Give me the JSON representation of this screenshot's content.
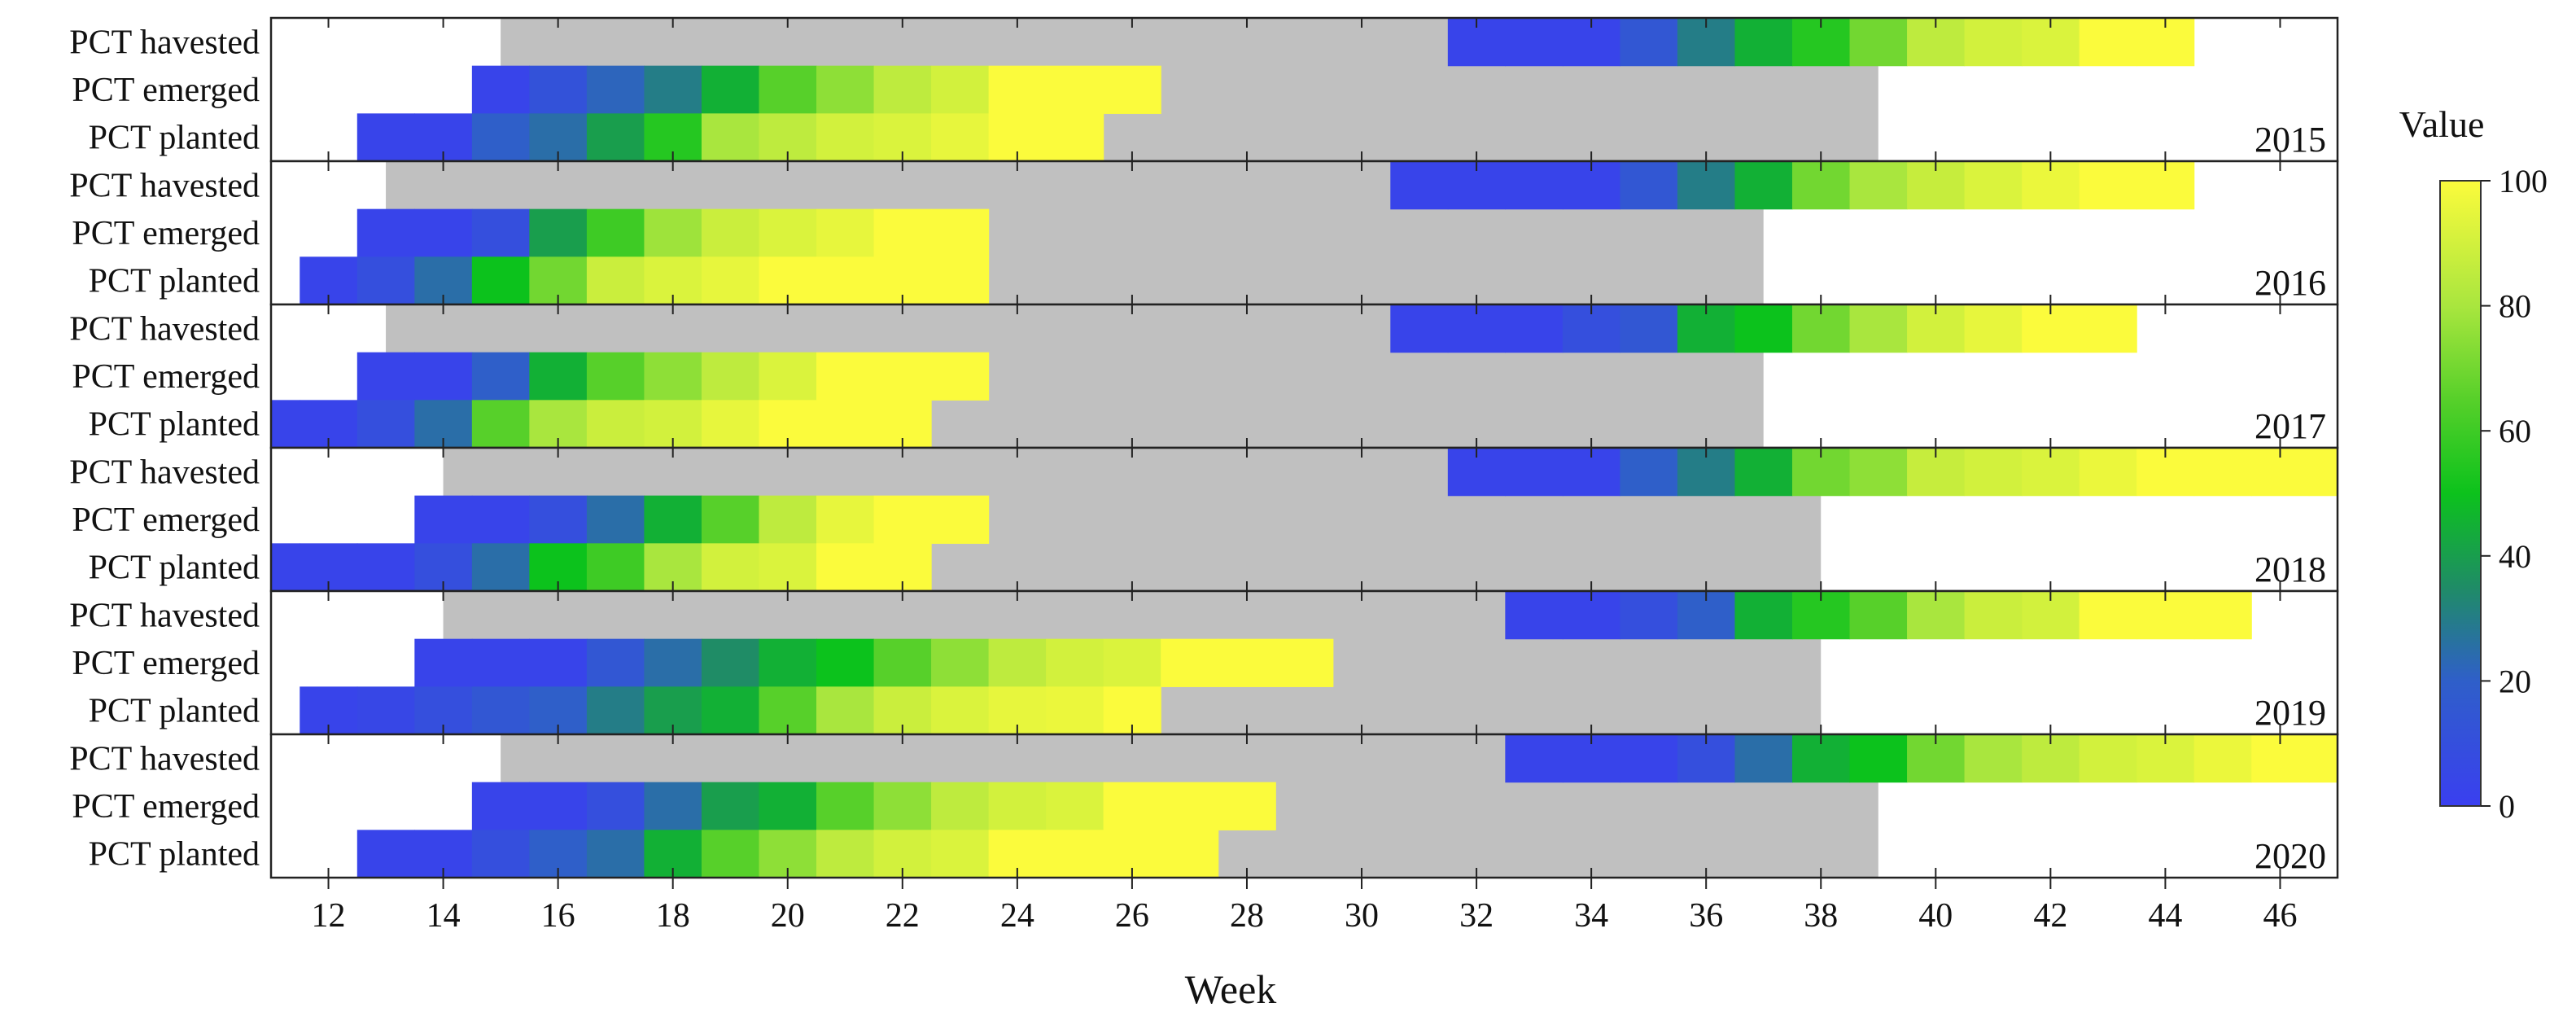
{
  "chart_data": {
    "type": "heatmap",
    "xlabel": "Week",
    "xlim": [
      11,
      47
    ],
    "xticks": [
      12,
      14,
      16,
      18,
      20,
      22,
      24,
      26,
      28,
      30,
      32,
      34,
      36,
      38,
      40,
      42,
      44,
      46
    ],
    "row_labels": [
      "PCT havested",
      "PCT emerged",
      "PCT planted"
    ],
    "colorbar": {
      "title": "Value",
      "min": 0,
      "max": 100,
      "ticks": [
        0,
        20,
        40,
        60,
        80,
        100
      ]
    },
    "colors": {
      "nodata": "#ffffff",
      "season": "#c0c0c0"
    },
    "panels": [
      {
        "year": "2015",
        "season": [
          15,
          39
        ],
        "havested": {
          "start": 32,
          "values": [
            3,
            3,
            3,
            15,
            30,
            45,
            55,
            70,
            85,
            90,
            92,
            100,
            100
          ]
        },
        "emerged": {
          "start": 15,
          "values": [
            3,
            12,
            22,
            30,
            45,
            65,
            75,
            85,
            90,
            100,
            100,
            100
          ]
        },
        "planted": {
          "start": 13,
          "values": [
            3,
            3,
            20,
            25,
            40,
            55,
            80,
            85,
            90,
            92,
            95,
            100,
            100
          ]
        }
      },
      {
        "year": "2016",
        "season": [
          13,
          37
        ],
        "havested": {
          "start": 31,
          "values": [
            3,
            3,
            3,
            3,
            15,
            30,
            45,
            70,
            80,
            87,
            92,
            96,
            100,
            100
          ]
        },
        "emerged": {
          "start": 13,
          "values": [
            3,
            3,
            10,
            40,
            60,
            78,
            88,
            92,
            95,
            100,
            100
          ]
        },
        "planted": {
          "start": 12,
          "values": [
            3,
            10,
            25,
            50,
            70,
            88,
            92,
            95,
            100,
            100,
            100,
            100
          ]
        }
      },
      {
        "year": "2017",
        "season": [
          13,
          37
        ],
        "havested": {
          "start": 31,
          "values": [
            3,
            3,
            3,
            10,
            15,
            45,
            50,
            70,
            80,
            90,
            95,
            100,
            100
          ]
        },
        "emerged": {
          "start": 13,
          "values": [
            3,
            3,
            20,
            45,
            65,
            75,
            85,
            92,
            100,
            100,
            100
          ]
        },
        "planted": {
          "start": 11,
          "values": [
            3,
            3,
            10,
            25,
            65,
            80,
            88,
            90,
            95,
            100,
            100,
            100
          ]
        }
      },
      {
        "year": "2018",
        "season": [
          14,
          38
        ],
        "havested": {
          "start": 32,
          "values": [
            3,
            3,
            3,
            20,
            30,
            45,
            70,
            75,
            87,
            90,
            92,
            96,
            100,
            100,
            100,
            100
          ]
        },
        "emerged": {
          "start": 14,
          "values": [
            3,
            3,
            10,
            25,
            45,
            65,
            85,
            95,
            100,
            100
          ]
        },
        "planted": {
          "start": 11,
          "values": [
            3,
            3,
            3,
            10,
            25,
            50,
            60,
            80,
            90,
            92,
            100,
            100
          ]
        }
      },
      {
        "year": "2019",
        "season": [
          14,
          38
        ],
        "havested": {
          "start": 33,
          "values": [
            3,
            3,
            10,
            20,
            45,
            55,
            65,
            80,
            88,
            90,
            100,
            100,
            100
          ]
        },
        "emerged": {
          "start": 14,
          "values": [
            3,
            3,
            3,
            15,
            25,
            35,
            45,
            50,
            65,
            75,
            85,
            90,
            92,
            100,
            100,
            100
          ]
        },
        "planted": {
          "start": 12,
          "values": [
            3,
            5,
            10,
            15,
            20,
            30,
            40,
            45,
            65,
            80,
            88,
            92,
            95,
            96,
            100
          ]
        }
      },
      {
        "year": "2020",
        "season": [
          15,
          39
        ],
        "havested": {
          "start": 33,
          "values": [
            3,
            3,
            3,
            10,
            25,
            45,
            50,
            70,
            80,
            85,
            90,
            92,
            96,
            100,
            100
          ]
        },
        "emerged": {
          "start": 15,
          "values": [
            3,
            3,
            10,
            25,
            40,
            45,
            65,
            75,
            85,
            90,
            92,
            100,
            100,
            100
          ]
        },
        "planted": {
          "start": 13,
          "values": [
            3,
            3,
            10,
            20,
            25,
            45,
            65,
            75,
            85,
            90,
            92,
            100,
            100,
            100,
            100
          ]
        }
      }
    ]
  }
}
